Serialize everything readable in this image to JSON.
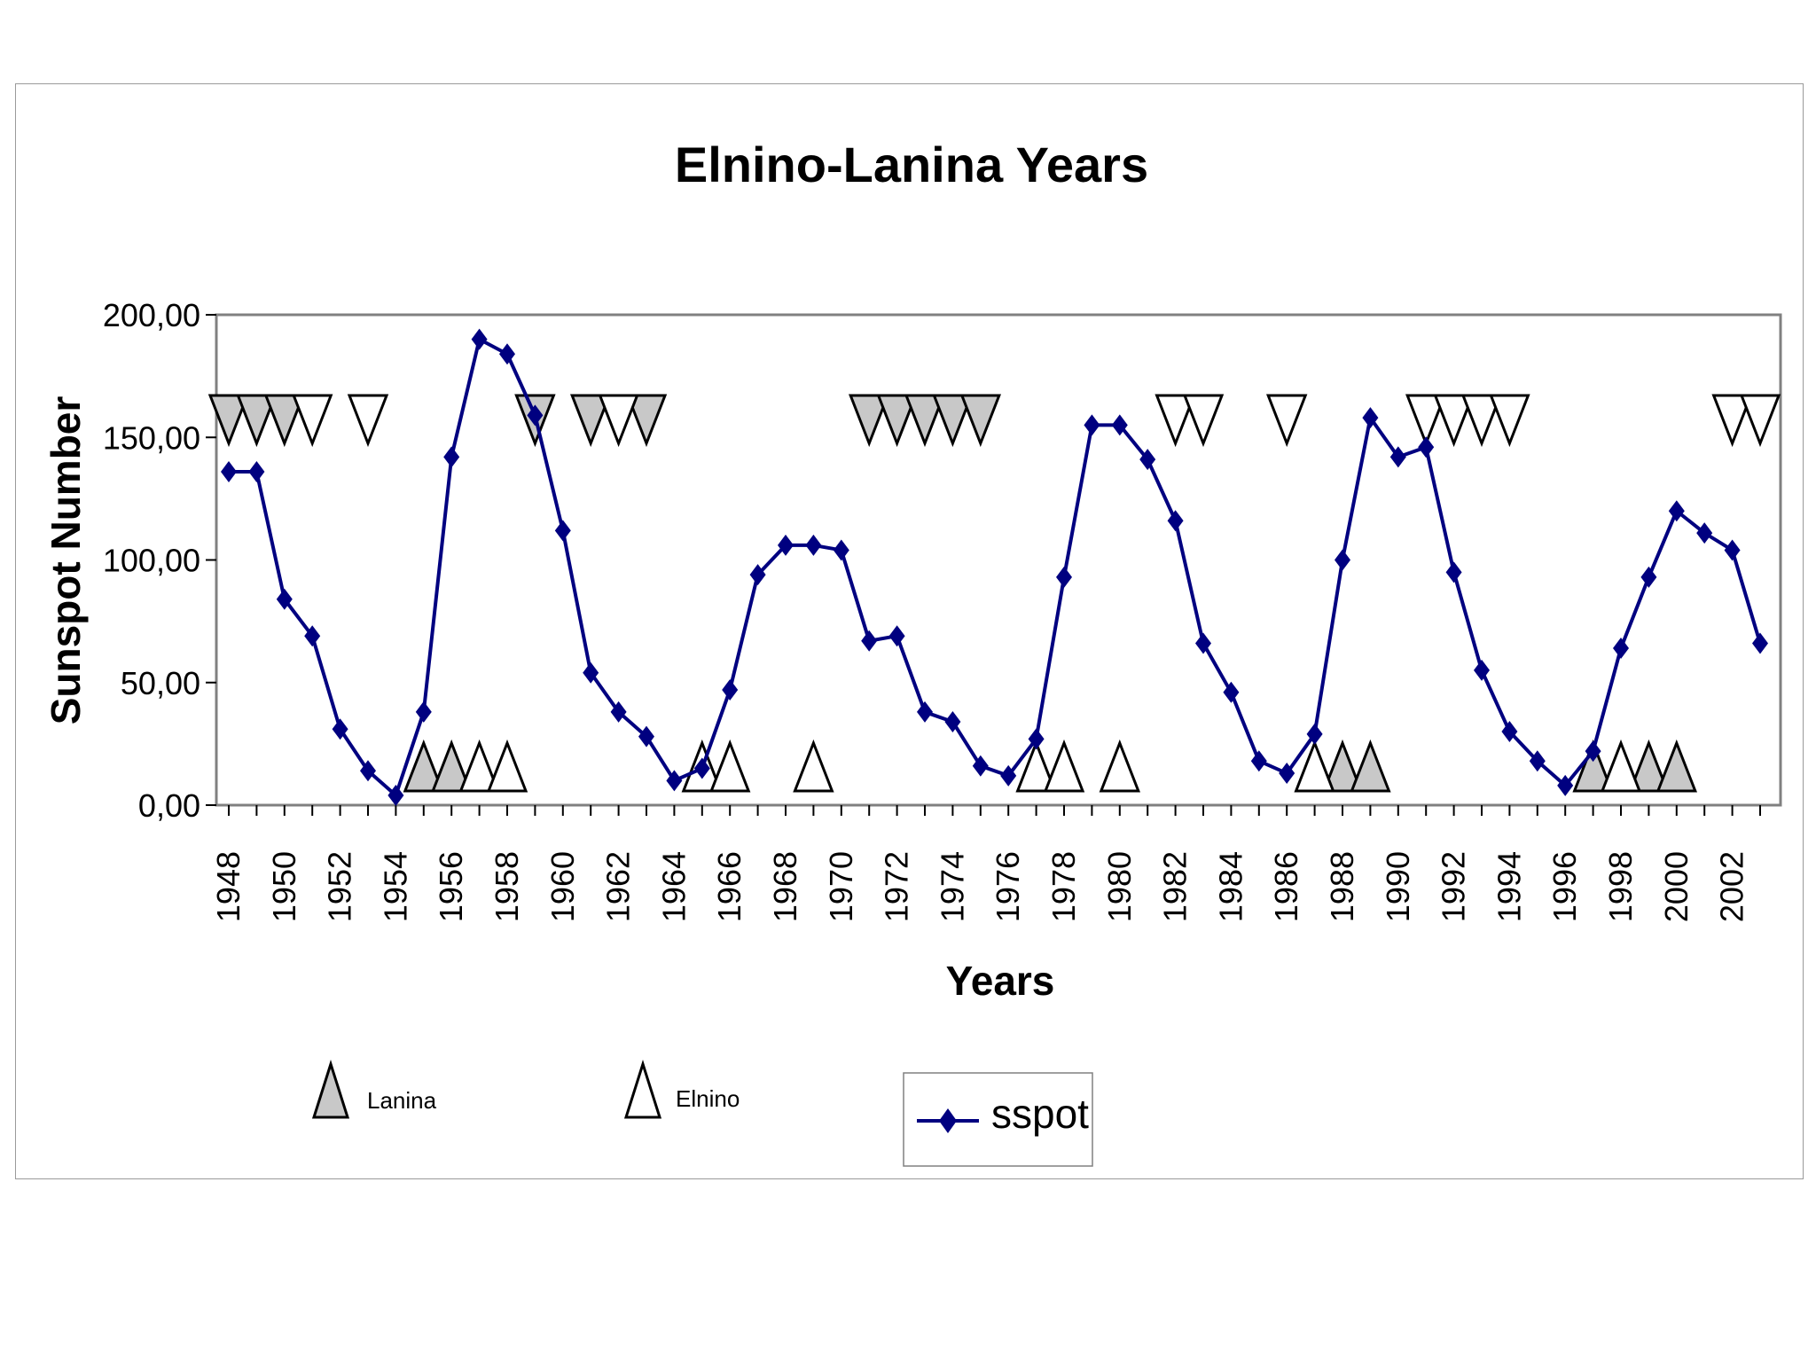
{
  "chart_data": {
    "type": "line",
    "title": "Elnino-Lanina Years",
    "xlabel": "Years",
    "ylabel": "Sunspot Number",
    "ylim": [
      0,
      200
    ],
    "yticks": [
      "0,00",
      "50,00",
      "100,00",
      "150,00",
      "200,00"
    ],
    "ytick_values": [
      0,
      50,
      100,
      150,
      200
    ],
    "xlim": [
      1948,
      2003
    ],
    "xticks": [
      1948,
      1950,
      1952,
      1954,
      1956,
      1958,
      1960,
      1962,
      1964,
      1966,
      1968,
      1970,
      1972,
      1974,
      1976,
      1978,
      1980,
      1982,
      1984,
      1986,
      1988,
      1990,
      1992,
      1994,
      1996,
      1998,
      2000,
      2002
    ],
    "grid": false,
    "series": [
      {
        "name": "sspot",
        "color": "#000080",
        "marker": "diamond",
        "x": [
          1948,
          1949,
          1950,
          1951,
          1952,
          1953,
          1954,
          1955,
          1956,
          1957,
          1958,
          1959,
          1960,
          1961,
          1962,
          1963,
          1964,
          1965,
          1966,
          1967,
          1968,
          1969,
          1970,
          1971,
          1972,
          1973,
          1974,
          1975,
          1976,
          1977,
          1978,
          1979,
          1980,
          1981,
          1982,
          1983,
          1984,
          1985,
          1986,
          1987,
          1988,
          1989,
          1990,
          1991,
          1992,
          1993,
          1994,
          1995,
          1996,
          1997,
          1998,
          1999,
          2000,
          2001,
          2002,
          2003
        ],
        "y": [
          136,
          136,
          84,
          69,
          31,
          14,
          4,
          38,
          142,
          190,
          184,
          159,
          112,
          54,
          38,
          28,
          10,
          15,
          47,
          94,
          106,
          106,
          104,
          67,
          69,
          38,
          34,
          16,
          12,
          27,
          93,
          155,
          155,
          141,
          116,
          66,
          46,
          18,
          13,
          29,
          100,
          158,
          142,
          146,
          95,
          55,
          30,
          18,
          8,
          22,
          64,
          93,
          120,
          111,
          104,
          66
        ]
      }
    ],
    "lanina_years": [
      1948,
      1949,
      1950,
      1955,
      1956,
      1959,
      1961,
      1963,
      1971,
      1972,
      1973,
      1974,
      1975,
      1988,
      1989,
      1997,
      1999,
      2000
    ],
    "elnino_years": [
      1951,
      1953,
      1957,
      1958,
      1962,
      1965,
      1966,
      1969,
      1977,
      1978,
      1980,
      1982,
      1983,
      1986,
      1987,
      1991,
      1992,
      1993,
      1994,
      1998,
      2002,
      2003
    ],
    "legend": {
      "lanina_label": "Lanina",
      "elnino_label": "Elnino",
      "series_label": "sspot",
      "lanina_color": "#c8c8c8",
      "elnino_color": "#ffffff"
    }
  }
}
